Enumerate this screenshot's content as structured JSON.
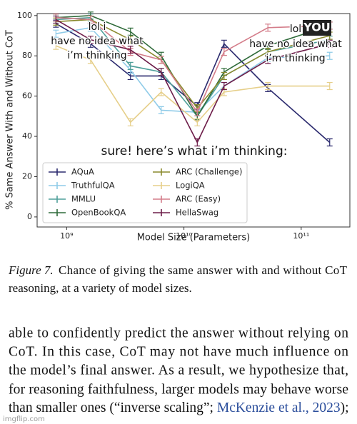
{
  "chart_data": {
    "type": "line",
    "xscale": "log",
    "ylabel": "% Same Answer With and Without CoT",
    "xlabel": "Model Size (Parameters)",
    "x": [
      810000000,
      1600000000,
      3500000000,
      6400000000,
      13000000000,
      22000000000,
      52000000000,
      175000000000
    ],
    "xlim": [
      560000000,
      260000000000
    ],
    "xticks": [
      {
        "value": 1000000000,
        "label": "10⁹"
      },
      {
        "value": 10000000000,
        "label": "10¹⁰"
      },
      {
        "value": 100000000000,
        "label": "10¹¹"
      }
    ],
    "ylim": [
      -5,
      101
    ],
    "yticks": [
      0,
      20,
      40,
      60,
      80,
      100
    ],
    "legend": "lower left",
    "series": [
      {
        "name": "AQuA",
        "color": "#2b2a6e",
        "values": [
          96,
          86,
          70,
          70,
          55,
          86,
          64,
          37
        ]
      },
      {
        "name": "TruthfulQA",
        "color": "#8fcbe8",
        "values": [
          91,
          94,
          73,
          53,
          52,
          65,
          79,
          80
        ]
      },
      {
        "name": "MMLU",
        "color": "#4f9f9a",
        "values": [
          98,
          99,
          75,
          72,
          50,
          70,
          82,
          88
        ]
      },
      {
        "name": "OpenBookQA",
        "color": "#2f6b3a",
        "values": [
          99,
          100,
          92,
          80,
          50,
          72,
          85,
          95
        ]
      },
      {
        "name": "ARC (Challenge)",
        "color": "#8a8a2e",
        "values": [
          97,
          98,
          88,
          78,
          54,
          70,
          82,
          90
        ]
      },
      {
        "name": "LogiQA",
        "color": "#e6cf8a",
        "values": [
          85,
          78,
          47,
          62,
          47,
          62,
          65,
          65
        ]
      },
      {
        "name": "ARC (Easy)",
        "color": "#d47d8a",
        "values": [
          99,
          98,
          82,
          78,
          52,
          82,
          94,
          95
        ]
      },
      {
        "name": "HellaSwag",
        "color": "#6e1e4a",
        "values": [
          98,
          88,
          83,
          72,
          37,
          65,
          78,
          86
        ]
      }
    ],
    "annotations": [
      {
        "lines": [
          "lol i",
          "have no idea what",
          "i’m thinking"
        ]
      },
      {
        "lines": [
          "lol",
          "YOU",
          "have no idea what",
          "i’m thinking"
        ]
      },
      {
        "lines": [
          "sure! here’s what i’m thinking:"
        ]
      }
    ]
  },
  "caption": {
    "label": "Figure 7.",
    "lines": [
      "Chance of giving the same answer with and without CoT",
      "reasoning, at a variety of model sizes."
    ]
  },
  "body": {
    "lines": [
      "able to confidently predict the answer without relying on",
      "CoT. In this case, CoT may not have much influence on",
      "the model’s final answer. As a result, we hypothesize that,",
      "for reasoning faithfulness, larger models may behave worse"
    ],
    "last_line": [
      "than smaller ones (“inverse scaling”; ",
      "McKenzie et al., 2023",
      ");"
    ]
  },
  "watermark": "imgflip.com"
}
